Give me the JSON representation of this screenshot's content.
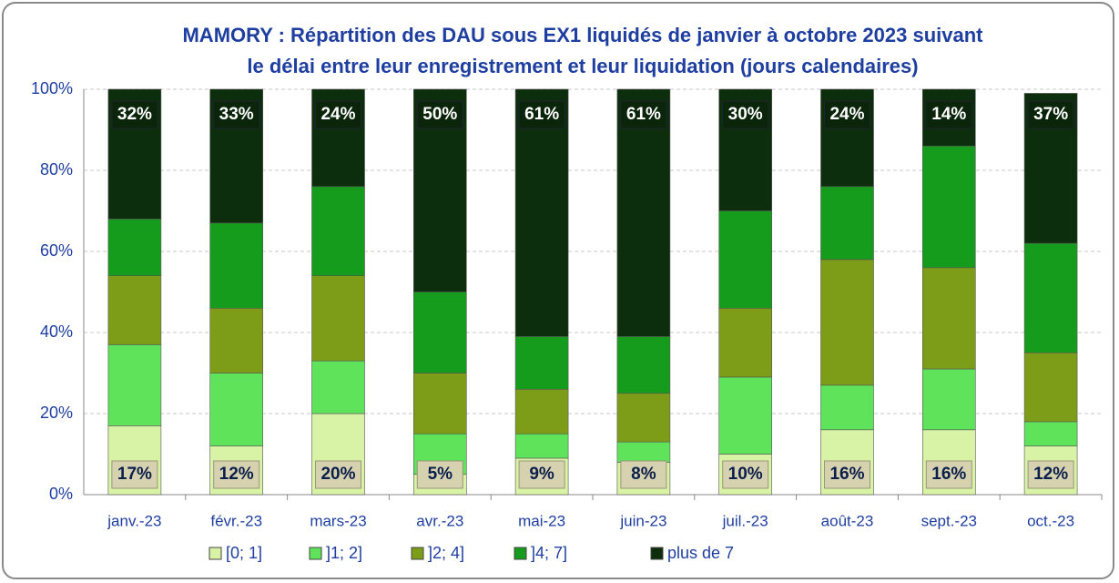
{
  "chart_data": {
    "type": "stacked_bar",
    "title": "MAMORY : Répartition des DAU sous EX1 liquidés de janvier à octobre 2023 suivant",
    "subtitle": "le délai entre leur enregistrement et leur liquidation (jours calendaires)",
    "categories": [
      "janv.-23",
      "févr.-23",
      "mars-23",
      "avr.-23",
      "mai-23",
      "juin-23",
      "juil.-23",
      "août-23",
      "sept.-23",
      "oct.-23"
    ],
    "series": [
      {
        "name": "[0; 1]",
        "color": "#d8f2a6",
        "values": [
          17,
          12,
          20,
          5,
          9,
          8,
          10,
          16,
          16,
          12
        ],
        "value_labels": [
          "17%",
          "12%",
          "20%",
          "5%",
          "9%",
          "8%",
          "10%",
          "16%",
          "16%",
          "12%"
        ]
      },
      {
        "name": "]1; 2]",
        "color": "#5fe35a",
        "values": [
          20,
          18,
          13,
          10,
          6,
          5,
          19,
          11,
          15,
          6
        ]
      },
      {
        "name": "]2; 4]",
        "color": "#7d9c18",
        "values": [
          17,
          16,
          21,
          15,
          11,
          12,
          17,
          31,
          25,
          17
        ]
      },
      {
        "name": "]4; 7]",
        "color": "#169c1c",
        "values": [
          14,
          21,
          22,
          20,
          13,
          14,
          24,
          18,
          30,
          27
        ]
      },
      {
        "name": "plus de 7",
        "color": "#0c2e0c",
        "values": [
          32,
          33,
          24,
          50,
          61,
          61,
          30,
          24,
          14,
          37
        ],
        "value_labels": [
          "32%",
          "33%",
          "24%",
          "50%",
          "61%",
          "61%",
          "30%",
          "24%",
          "14%",
          "37%"
        ]
      }
    ],
    "ylim": [
      0,
      100
    ],
    "yticks": [
      {
        "value": 0,
        "label": "0%"
      },
      {
        "value": 20,
        "label": "20%"
      },
      {
        "value": 40,
        "label": "40%"
      },
      {
        "value": 60,
        "label": "60%"
      },
      {
        "value": 80,
        "label": "80%"
      },
      {
        "value": 100,
        "label": "100%"
      }
    ],
    "grid": true,
    "legend": "bottom"
  }
}
